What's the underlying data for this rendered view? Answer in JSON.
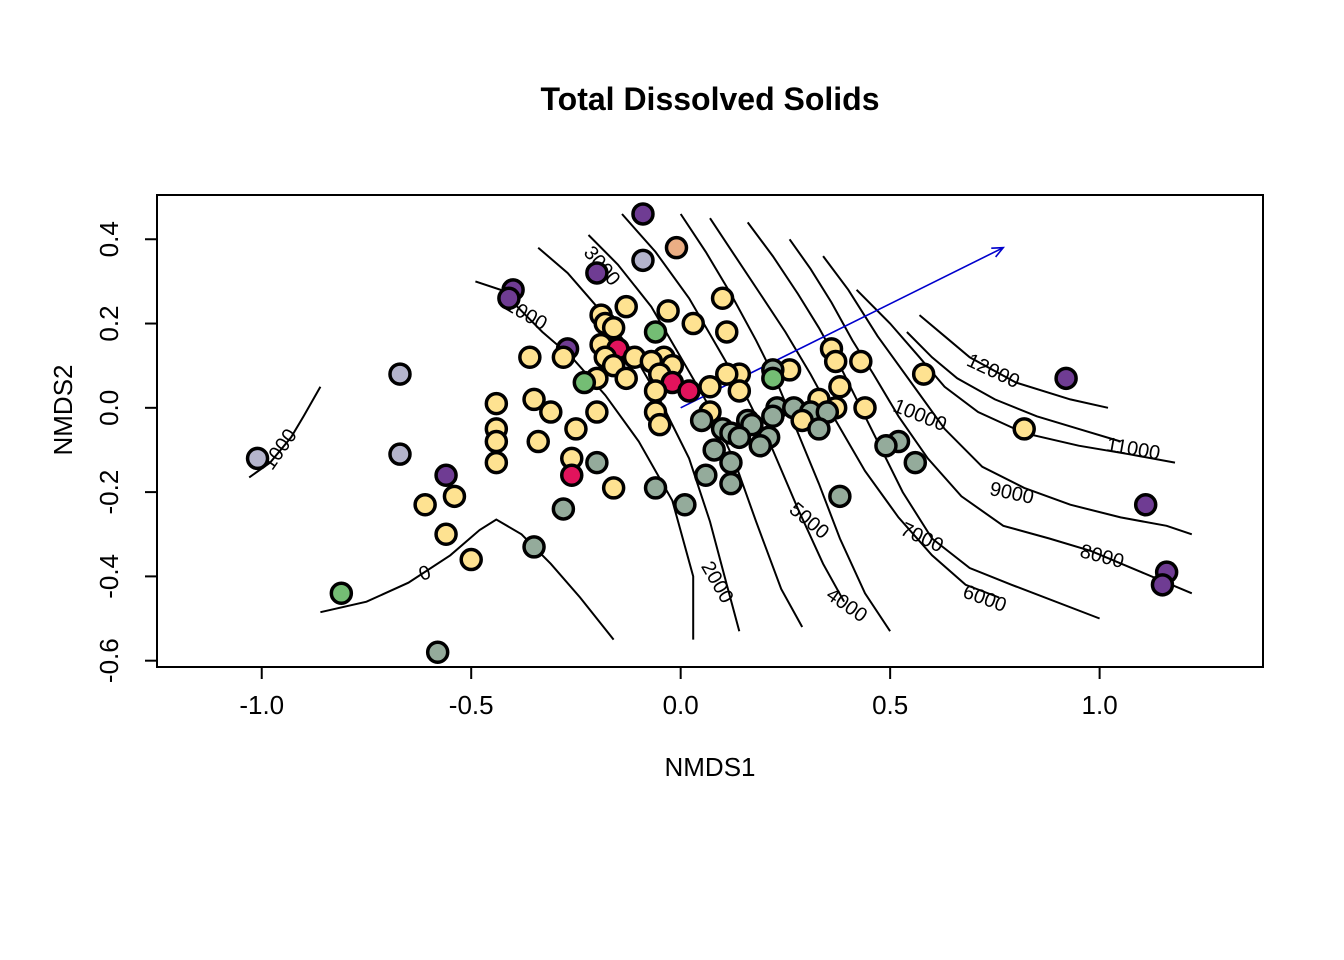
{
  "chart_data": {
    "type": "scatter",
    "title": "Total Dissolved Solids",
    "xlabel": "NMDS1",
    "ylabel": "NMDS2",
    "xlim": [
      -1.25,
      1.39
    ],
    "ylim": [
      -0.615,
      0.505
    ],
    "x_ticks": [
      -1.0,
      -0.5,
      0.0,
      0.5,
      1.0
    ],
    "x_tick_labels": [
      "-1.0",
      "-0.5",
      "0.0",
      "0.5",
      "1.0"
    ],
    "y_ticks": [
      -0.6,
      -0.4,
      -0.2,
      0.0,
      0.2,
      0.4
    ],
    "y_tick_labels": [
      "-0.6",
      "-0.4",
      "-0.2",
      "0.0",
      "0.2",
      "0.4"
    ],
    "grid": false,
    "legend": "none",
    "colors": {
      "yellow": "#FEE291",
      "sage": "#94AB9B",
      "purple": "#6F3C93",
      "lavender": "#B4B4CC",
      "green": "#74BD74",
      "red": "#E2135C",
      "peach": "#EBAE84"
    },
    "vector": {
      "x0": 0.0,
      "y0": 0.0,
      "x1": 0.77,
      "y1": 0.38,
      "color": "#0000CC"
    },
    "contours": [
      {
        "level": "0",
        "label": "0",
        "label_at": [
          -0.61,
          -0.395
        ],
        "angle": -20,
        "points": [
          [
            -0.86,
            -0.485
          ],
          [
            -0.75,
            -0.46
          ],
          [
            -0.65,
            -0.415
          ],
          [
            -0.55,
            -0.35
          ],
          [
            -0.48,
            -0.29
          ],
          [
            -0.44,
            -0.265
          ],
          [
            -0.38,
            -0.3
          ],
          [
            -0.31,
            -0.37
          ],
          [
            -0.24,
            -0.45
          ],
          [
            -0.16,
            -0.55
          ]
        ]
      },
      {
        "level": "1000",
        "label": "1000",
        "label_at": [
          -0.955,
          -0.1
        ],
        "angle": -55,
        "points": [
          [
            -1.03,
            -0.165
          ],
          [
            -0.98,
            -0.13
          ],
          [
            -0.93,
            -0.07
          ],
          [
            -0.9,
            -0.02
          ],
          [
            -0.86,
            0.05
          ]
        ]
      },
      {
        "level": "1000",
        "label": "1000",
        "label_at": [
          -0.37,
          0.22
        ],
        "angle": 30,
        "points": [
          [
            -0.49,
            0.3
          ],
          [
            -0.43,
            0.28
          ],
          [
            -0.38,
            0.23
          ],
          [
            -0.33,
            0.18
          ],
          [
            -0.26,
            0.12
          ],
          [
            -0.18,
            0.03
          ],
          [
            -0.1,
            -0.08
          ],
          [
            -0.02,
            -0.22
          ],
          [
            0.03,
            -0.4
          ],
          [
            0.03,
            -0.55
          ]
        ]
      },
      {
        "level": "2000",
        "label": "2000",
        "label_at": [
          0.085,
          -0.415
        ],
        "angle": 60,
        "points": [
          [
            -0.34,
            0.38
          ],
          [
            -0.27,
            0.32
          ],
          [
            -0.2,
            0.24
          ],
          [
            -0.12,
            0.14
          ],
          [
            -0.05,
            0.02
          ],
          [
            0.02,
            -0.12
          ],
          [
            0.07,
            -0.27
          ],
          [
            0.11,
            -0.42
          ],
          [
            0.14,
            -0.53
          ]
        ]
      },
      {
        "level": "3000",
        "label": "3000",
        "label_at": [
          -0.19,
          0.335
        ],
        "angle": 50,
        "points": [
          [
            -0.22,
            0.41
          ],
          [
            -0.15,
            0.34
          ],
          [
            -0.07,
            0.24
          ],
          [
            0.0,
            0.12
          ],
          [
            0.07,
            0.0
          ],
          [
            0.13,
            -0.13
          ],
          [
            0.18,
            -0.27
          ],
          [
            0.24,
            -0.43
          ],
          [
            0.29,
            -0.52
          ]
        ]
      },
      {
        "level": "4000",
        "label": "4000",
        "label_at": [
          0.395,
          -0.47
        ],
        "angle": 35,
        "points": [
          [
            -0.14,
            0.46
          ],
          [
            -0.06,
            0.37
          ],
          [
            0.02,
            0.26
          ],
          [
            0.09,
            0.14
          ],
          [
            0.16,
            0.02
          ],
          [
            0.22,
            -0.1
          ],
          [
            0.28,
            -0.24
          ],
          [
            0.34,
            -0.37
          ],
          [
            0.39,
            -0.46
          ]
        ]
      },
      {
        "level": "5000",
        "label": "5000",
        "label_at": [
          0.305,
          -0.27
        ],
        "angle": 40,
        "points": [
          [
            0.0,
            0.46
          ],
          [
            0.06,
            0.37
          ],
          [
            0.12,
            0.27
          ],
          [
            0.18,
            0.16
          ],
          [
            0.23,
            0.06
          ],
          [
            0.28,
            -0.06
          ],
          [
            0.33,
            -0.18
          ],
          [
            0.38,
            -0.31
          ],
          [
            0.44,
            -0.44
          ],
          [
            0.5,
            -0.53
          ]
        ]
      },
      {
        "level": "6000",
        "label": "6000",
        "label_at": [
          0.725,
          -0.455
        ],
        "angle": 20,
        "points": [
          [
            0.07,
            0.45
          ],
          [
            0.13,
            0.36
          ],
          [
            0.19,
            0.27
          ],
          [
            0.25,
            0.18
          ],
          [
            0.31,
            0.08
          ],
          [
            0.37,
            -0.03
          ],
          [
            0.44,
            -0.15
          ],
          [
            0.52,
            -0.26
          ],
          [
            0.6,
            -0.35
          ],
          [
            0.68,
            -0.42
          ],
          [
            0.76,
            -0.45
          ]
        ]
      },
      {
        "level": "7000",
        "label": "7000",
        "label_at": [
          0.575,
          -0.31
        ],
        "angle": 25,
        "points": [
          [
            0.16,
            0.44
          ],
          [
            0.22,
            0.36
          ],
          [
            0.28,
            0.27
          ],
          [
            0.33,
            0.19
          ],
          [
            0.38,
            0.1
          ],
          [
            0.43,
            0.0
          ],
          [
            0.48,
            -0.1
          ],
          [
            0.53,
            -0.2
          ],
          [
            0.6,
            -0.31
          ],
          [
            0.69,
            -0.38
          ],
          [
            0.79,
            -0.42
          ],
          [
            1.0,
            -0.5
          ]
        ]
      },
      {
        "level": "8000",
        "label": "8000",
        "label_at": [
          1.005,
          -0.355
        ],
        "angle": 15,
        "points": [
          [
            0.26,
            0.4
          ],
          [
            0.31,
            0.33
          ],
          [
            0.36,
            0.25
          ],
          [
            0.41,
            0.16
          ],
          [
            0.46,
            0.08
          ],
          [
            0.52,
            -0.02
          ],
          [
            0.59,
            -0.12
          ],
          [
            0.67,
            -0.21
          ],
          [
            0.77,
            -0.28
          ],
          [
            0.88,
            -0.31
          ],
          [
            0.98,
            -0.34
          ],
          [
            1.1,
            -0.39
          ],
          [
            1.22,
            -0.44
          ]
        ]
      },
      {
        "level": "9000",
        "label": "9000",
        "label_at": [
          0.79,
          -0.205
        ],
        "angle": 12,
        "points": [
          [
            0.34,
            0.36
          ],
          [
            0.4,
            0.28
          ],
          [
            0.47,
            0.17
          ],
          [
            0.55,
            0.06
          ],
          [
            0.63,
            -0.05
          ],
          [
            0.72,
            -0.14
          ],
          [
            0.82,
            -0.19
          ],
          [
            0.93,
            -0.23
          ],
          [
            1.05,
            -0.26
          ],
          [
            1.16,
            -0.28
          ],
          [
            1.22,
            -0.3
          ]
        ]
      },
      {
        "level": "10000",
        "label": "10000",
        "label_at": [
          0.57,
          -0.02
        ],
        "angle": 22,
        "points": [
          [
            0.42,
            0.28
          ],
          [
            0.5,
            0.2
          ],
          [
            0.57,
            0.12
          ],
          [
            0.63,
            0.05
          ],
          [
            0.71,
            -0.01
          ],
          [
            0.82,
            -0.06
          ],
          [
            0.95,
            -0.09
          ],
          [
            1.07,
            -0.11
          ],
          [
            1.18,
            -0.13
          ]
        ]
      },
      {
        "level": "11000",
        "label": "11000",
        "label_at": [
          1.08,
          -0.1
        ],
        "angle": 10,
        "points": [
          [
            0.54,
            0.18
          ],
          [
            0.6,
            0.12
          ],
          [
            0.66,
            0.07
          ],
          [
            0.75,
            0.02
          ],
          [
            0.85,
            -0.02
          ],
          [
            0.95,
            -0.05
          ],
          [
            1.05,
            -0.08
          ]
        ]
      },
      {
        "level": "12000",
        "label": "12000",
        "label_at": [
          0.745,
          0.085
        ],
        "angle": 25,
        "points": [
          [
            0.57,
            0.22
          ],
          [
            0.63,
            0.17
          ],
          [
            0.69,
            0.12
          ],
          [
            0.8,
            0.06
          ],
          [
            0.93,
            0.02
          ],
          [
            1.02,
            0.0
          ]
        ]
      }
    ],
    "points": [
      {
        "x": -0.09,
        "y": 0.46,
        "c": "purple"
      },
      {
        "x": -0.01,
        "y": 0.38,
        "c": "peach"
      },
      {
        "x": -0.09,
        "y": 0.35,
        "c": "lavender"
      },
      {
        "x": -0.2,
        "y": 0.32,
        "c": "purple"
      },
      {
        "x": -0.4,
        "y": 0.28,
        "c": "purple"
      },
      {
        "x": -0.41,
        "y": 0.26,
        "c": "purple"
      },
      {
        "x": 0.1,
        "y": 0.26,
        "c": "yellow"
      },
      {
        "x": -0.13,
        "y": 0.24,
        "c": "yellow"
      },
      {
        "x": -0.03,
        "y": 0.23,
        "c": "yellow"
      },
      {
        "x": -0.19,
        "y": 0.22,
        "c": "yellow"
      },
      {
        "x": -0.18,
        "y": 0.2,
        "c": "yellow"
      },
      {
        "x": 0.03,
        "y": 0.2,
        "c": "yellow"
      },
      {
        "x": -0.16,
        "y": 0.19,
        "c": "yellow"
      },
      {
        "x": -0.06,
        "y": 0.18,
        "c": "green"
      },
      {
        "x": 0.11,
        "y": 0.18,
        "c": "yellow"
      },
      {
        "x": -0.19,
        "y": 0.15,
        "c": "yellow"
      },
      {
        "x": -0.27,
        "y": 0.14,
        "c": "purple"
      },
      {
        "x": -0.15,
        "y": 0.14,
        "c": "red"
      },
      {
        "x": 0.36,
        "y": 0.14,
        "c": "yellow"
      },
      {
        "x": -0.36,
        "y": 0.12,
        "c": "yellow"
      },
      {
        "x": -0.28,
        "y": 0.12,
        "c": "yellow"
      },
      {
        "x": -0.18,
        "y": 0.12,
        "c": "yellow"
      },
      {
        "x": -0.11,
        "y": 0.12,
        "c": "yellow"
      },
      {
        "x": -0.04,
        "y": 0.12,
        "c": "yellow"
      },
      {
        "x": 0.37,
        "y": 0.11,
        "c": "yellow"
      },
      {
        "x": 0.43,
        "y": 0.11,
        "c": "yellow"
      },
      {
        "x": -0.07,
        "y": 0.11,
        "c": "yellow"
      },
      {
        "x": -0.02,
        "y": 0.1,
        "c": "yellow"
      },
      {
        "x": -0.16,
        "y": 0.1,
        "c": "yellow"
      },
      {
        "x": 0.26,
        "y": 0.09,
        "c": "yellow"
      },
      {
        "x": 0.22,
        "y": 0.09,
        "c": "sage"
      },
      {
        "x": 0.58,
        "y": 0.08,
        "c": "yellow"
      },
      {
        "x": 0.14,
        "y": 0.08,
        "c": "yellow"
      },
      {
        "x": -0.67,
        "y": 0.08,
        "c": "lavender"
      },
      {
        "x": -0.05,
        "y": 0.08,
        "c": "yellow"
      },
      {
        "x": 0.11,
        "y": 0.08,
        "c": "yellow"
      },
      {
        "x": 0.92,
        "y": 0.07,
        "c": "purple"
      },
      {
        "x": -0.2,
        "y": 0.07,
        "c": "yellow"
      },
      {
        "x": -0.13,
        "y": 0.07,
        "c": "yellow"
      },
      {
        "x": 0.22,
        "y": 0.07,
        "c": "green"
      },
      {
        "x": -0.23,
        "y": 0.06,
        "c": "green"
      },
      {
        "x": -0.02,
        "y": 0.06,
        "c": "red"
      },
      {
        "x": 0.38,
        "y": 0.05,
        "c": "yellow"
      },
      {
        "x": 0.07,
        "y": 0.05,
        "c": "yellow"
      },
      {
        "x": -0.06,
        "y": 0.04,
        "c": "yellow"
      },
      {
        "x": 0.02,
        "y": 0.04,
        "c": "red"
      },
      {
        "x": 0.14,
        "y": 0.04,
        "c": "yellow"
      },
      {
        "x": -0.35,
        "y": 0.02,
        "c": "yellow"
      },
      {
        "x": -0.44,
        "y": 0.01,
        "c": "yellow"
      },
      {
        "x": 0.33,
        "y": 0.02,
        "c": "yellow"
      },
      {
        "x": 0.37,
        "y": 0.0,
        "c": "yellow"
      },
      {
        "x": 0.44,
        "y": 0.0,
        "c": "yellow"
      },
      {
        "x": 0.07,
        "y": -0.01,
        "c": "yellow"
      },
      {
        "x": -0.2,
        "y": -0.01,
        "c": "yellow"
      },
      {
        "x": -0.31,
        "y": -0.01,
        "c": "yellow"
      },
      {
        "x": 0.23,
        "y": 0.0,
        "c": "sage"
      },
      {
        "x": 0.27,
        "y": 0.0,
        "c": "sage"
      },
      {
        "x": 0.31,
        "y": -0.01,
        "c": "sage"
      },
      {
        "x": 0.35,
        "y": -0.01,
        "c": "sage"
      },
      {
        "x": 0.16,
        "y": -0.03,
        "c": "sage"
      },
      {
        "x": 0.22,
        "y": -0.02,
        "c": "sage"
      },
      {
        "x": 0.05,
        "y": -0.03,
        "c": "sage"
      },
      {
        "x": -0.06,
        "y": -0.01,
        "c": "yellow"
      },
      {
        "x": 0.29,
        "y": -0.03,
        "c": "yellow"
      },
      {
        "x": -0.05,
        "y": -0.04,
        "c": "yellow"
      },
      {
        "x": 0.1,
        "y": -0.05,
        "c": "sage"
      },
      {
        "x": 0.33,
        "y": -0.05,
        "c": "sage"
      },
      {
        "x": -0.44,
        "y": -0.05,
        "c": "yellow"
      },
      {
        "x": -0.25,
        "y": -0.05,
        "c": "yellow"
      },
      {
        "x": 0.12,
        "y": -0.06,
        "c": "sage"
      },
      {
        "x": 0.17,
        "y": -0.04,
        "c": "sage"
      },
      {
        "x": 0.14,
        "y": -0.07,
        "c": "sage"
      },
      {
        "x": 0.21,
        "y": -0.07,
        "c": "sage"
      },
      {
        "x": -0.34,
        "y": -0.08,
        "c": "yellow"
      },
      {
        "x": -0.44,
        "y": -0.08,
        "c": "yellow"
      },
      {
        "x": 0.52,
        "y": -0.08,
        "c": "sage"
      },
      {
        "x": 0.49,
        "y": -0.09,
        "c": "sage"
      },
      {
        "x": 0.08,
        "y": -0.1,
        "c": "sage"
      },
      {
        "x": 0.19,
        "y": -0.09,
        "c": "sage"
      },
      {
        "x": -0.67,
        "y": -0.11,
        "c": "lavender"
      },
      {
        "x": -1.01,
        "y": -0.12,
        "c": "lavender"
      },
      {
        "x": -0.44,
        "y": -0.13,
        "c": "yellow"
      },
      {
        "x": -0.26,
        "y": -0.12,
        "c": "yellow"
      },
      {
        "x": -0.2,
        "y": -0.13,
        "c": "sage"
      },
      {
        "x": 0.12,
        "y": -0.13,
        "c": "sage"
      },
      {
        "x": 0.56,
        "y": -0.13,
        "c": "sage"
      },
      {
        "x": -0.56,
        "y": -0.16,
        "c": "purple"
      },
      {
        "x": -0.26,
        "y": -0.16,
        "c": "red"
      },
      {
        "x": 0.06,
        "y": -0.16,
        "c": "sage"
      },
      {
        "x": 0.12,
        "y": -0.18,
        "c": "sage"
      },
      {
        "x": -0.16,
        "y": -0.19,
        "c": "yellow"
      },
      {
        "x": -0.06,
        "y": -0.19,
        "c": "sage"
      },
      {
        "x": 0.38,
        "y": -0.21,
        "c": "sage"
      },
      {
        "x": -0.54,
        "y": -0.21,
        "c": "yellow"
      },
      {
        "x": 1.11,
        "y": -0.23,
        "c": "purple"
      },
      {
        "x": -0.61,
        "y": -0.23,
        "c": "yellow"
      },
      {
        "x": 0.01,
        "y": -0.23,
        "c": "sage"
      },
      {
        "x": -0.28,
        "y": -0.24,
        "c": "sage"
      },
      {
        "x": -0.56,
        "y": -0.3,
        "c": "yellow"
      },
      {
        "x": -0.35,
        "y": -0.33,
        "c": "sage"
      },
      {
        "x": -0.5,
        "y": -0.36,
        "c": "yellow"
      },
      {
        "x": 1.16,
        "y": -0.39,
        "c": "purple"
      },
      {
        "x": 1.15,
        "y": -0.42,
        "c": "purple"
      },
      {
        "x": -0.81,
        "y": -0.44,
        "c": "green"
      },
      {
        "x": 0.82,
        "y": -0.05,
        "c": "yellow"
      },
      {
        "x": -0.58,
        "y": -0.58,
        "c": "sage"
      }
    ]
  }
}
